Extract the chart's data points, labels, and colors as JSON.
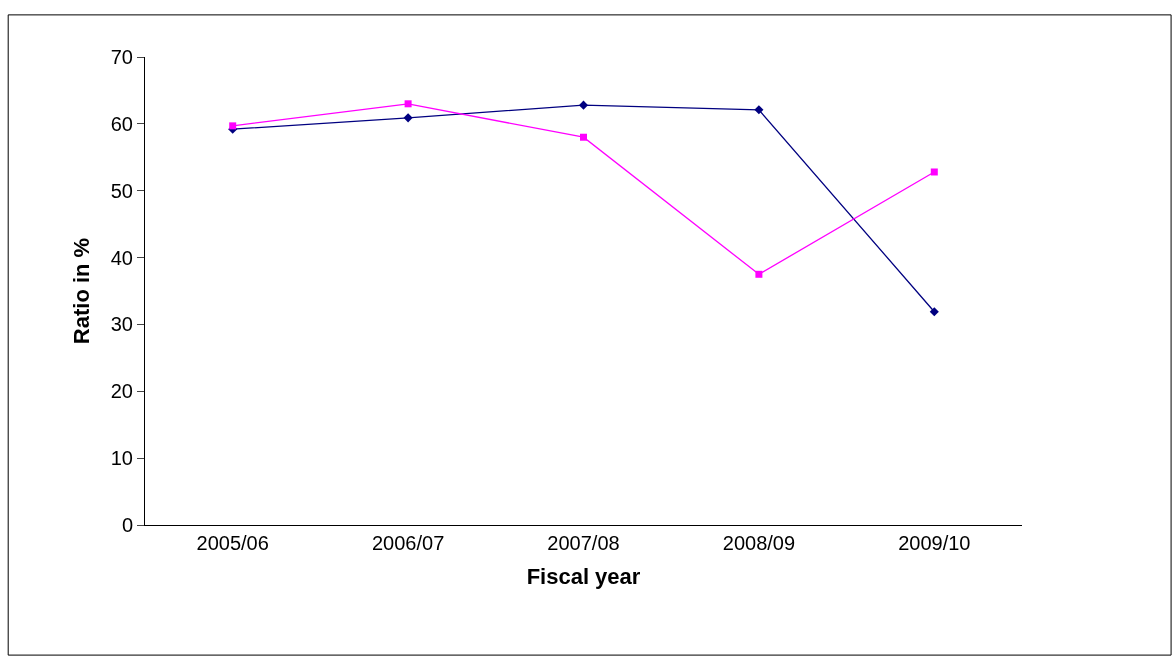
{
  "chart_data": {
    "type": "line",
    "xlabel": "Fiscal year",
    "ylabel": "Ratio in %",
    "categories": [
      "2005/06",
      "2006/07",
      "2007/08",
      "2008/09",
      "2009/10"
    ],
    "series": [
      {
        "color": "#000080",
        "marker": "diamond",
        "values": [
          59.2,
          60.9,
          62.8,
          62.1,
          31.9
        ]
      },
      {
        "color": "#ff00ff",
        "marker": "square",
        "values": [
          59.7,
          63.0,
          58.0,
          37.5,
          52.8
        ]
      }
    ],
    "ylim": [
      0,
      70
    ],
    "yticks": [
      0,
      10,
      20,
      30,
      40,
      50,
      60,
      70
    ]
  }
}
